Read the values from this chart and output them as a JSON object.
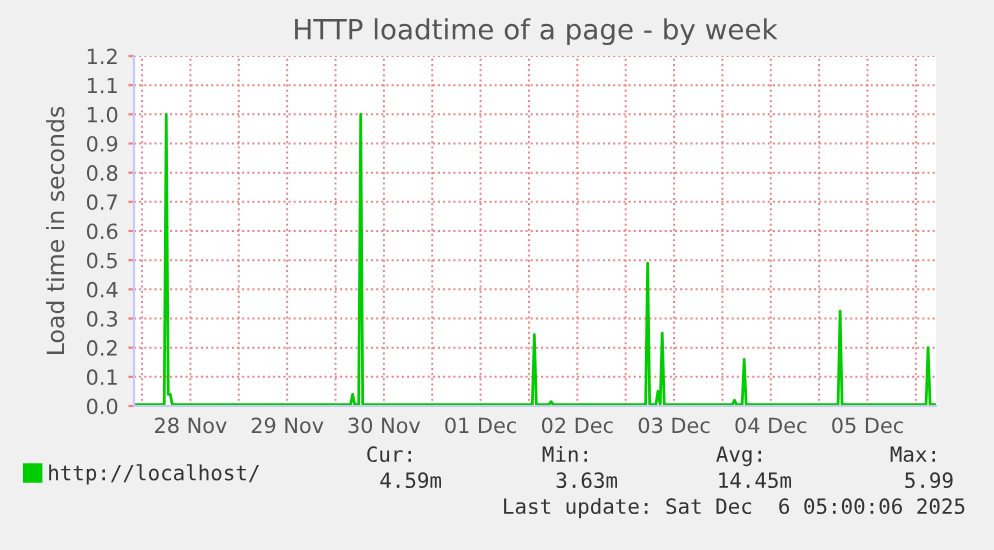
{
  "chart_data": {
    "type": "line",
    "title": "HTTP loadtime of a page - by week",
    "ylabel": "Load time in seconds",
    "x": [
      "2025-11-27T22:00",
      "2025-11-28T05:30",
      "2025-11-28T06:00",
      "2025-11-28T06:30",
      "2025-11-28T07:00",
      "2025-11-28T07:30",
      "2025-11-30T03:45",
      "2025-11-30T04:15",
      "2025-11-30T04:45",
      "2025-11-30T05:45",
      "2025-11-30T06:15",
      "2025-11-30T06:45",
      "2025-12-02T00:50",
      "2025-12-02T01:20",
      "2025-12-02T01:50",
      "2025-12-02T05:00",
      "2025-12-02T05:30",
      "2025-12-02T06:00",
      "2025-12-03T04:57",
      "2025-12-03T05:27",
      "2025-12-03T05:57",
      "2025-12-03T07:30",
      "2025-12-03T08:00",
      "2025-12-03T08:34",
      "2025-12-03T09:04",
      "2025-12-03T09:34",
      "2025-12-04T02:30",
      "2025-12-04T03:00",
      "2025-12-04T03:30",
      "2025-12-04T04:54",
      "2025-12-04T05:24",
      "2025-12-04T05:54",
      "2025-12-05T04:42",
      "2025-12-05T05:12",
      "2025-12-05T05:42",
      "2025-12-06T02:32",
      "2025-12-06T03:02",
      "2025-12-06T03:32",
      "2025-12-06T05:00"
    ],
    "series": [
      {
        "name": "http://localhost/",
        "color": "#00cc00",
        "values": [
          0.005,
          0.005,
          1.0,
          0.04,
          0.04,
          0.005,
          0.005,
          0.04,
          0.005,
          0.005,
          1.0,
          0.005,
          0.005,
          0.245,
          0.005,
          0.005,
          0.015,
          0.005,
          0.005,
          0.49,
          0.005,
          0.005,
          0.05,
          0.005,
          0.25,
          0.005,
          0.005,
          0.02,
          0.005,
          0.005,
          0.16,
          0.005,
          0.005,
          0.325,
          0.005,
          0.005,
          0.2,
          0.005,
          0.005
        ]
      }
    ],
    "xlim": [
      "2025-11-27T22:00",
      "2025-12-06T05:00"
    ],
    "xticks": [
      {
        "value": "2025-11-28T00:00",
        "label": null
      },
      {
        "value": "2025-11-28T12:00",
        "label": "28 Nov"
      },
      {
        "value": "2025-11-29T00:00",
        "label": null
      },
      {
        "value": "2025-11-29T12:00",
        "label": "29 Nov"
      },
      {
        "value": "2025-11-30T00:00",
        "label": null
      },
      {
        "value": "2025-11-30T12:00",
        "label": "30 Nov"
      },
      {
        "value": "2025-12-01T00:00",
        "label": null
      },
      {
        "value": "2025-12-01T12:00",
        "label": "01 Dec"
      },
      {
        "value": "2025-12-02T00:00",
        "label": null
      },
      {
        "value": "2025-12-02T12:00",
        "label": "02 Dec"
      },
      {
        "value": "2025-12-03T00:00",
        "label": null
      },
      {
        "value": "2025-12-03T12:00",
        "label": "03 Dec"
      },
      {
        "value": "2025-12-04T00:00",
        "label": null
      },
      {
        "value": "2025-12-04T12:00",
        "label": "04 Dec"
      },
      {
        "value": "2025-12-05T00:00",
        "label": null
      },
      {
        "value": "2025-12-05T12:00",
        "label": "05 Dec"
      },
      {
        "value": "2025-12-06T00:00",
        "label": null
      }
    ],
    "ylim": [
      0,
      1.2
    ],
    "yticks": [
      {
        "value": 0,
        "label": "0.0"
      },
      0.1,
      0.2,
      0.3,
      0.4,
      0.5,
      0.6,
      0.7,
      0.8,
      0.9,
      {
        "value": 1,
        "label": "1.0"
      },
      1.1,
      1.2
    ],
    "grid": true,
    "legend": "bottom",
    "marker": "none",
    "line_style": "solid",
    "annotations": [
      "Cur:",
      "4.59m",
      "Min:",
      "3.63m",
      "Avg:",
      "14.45m",
      "Max:",
      "5.99",
      "Last update: Sat Dec  6 05:00:06 2025"
    ]
  }
}
